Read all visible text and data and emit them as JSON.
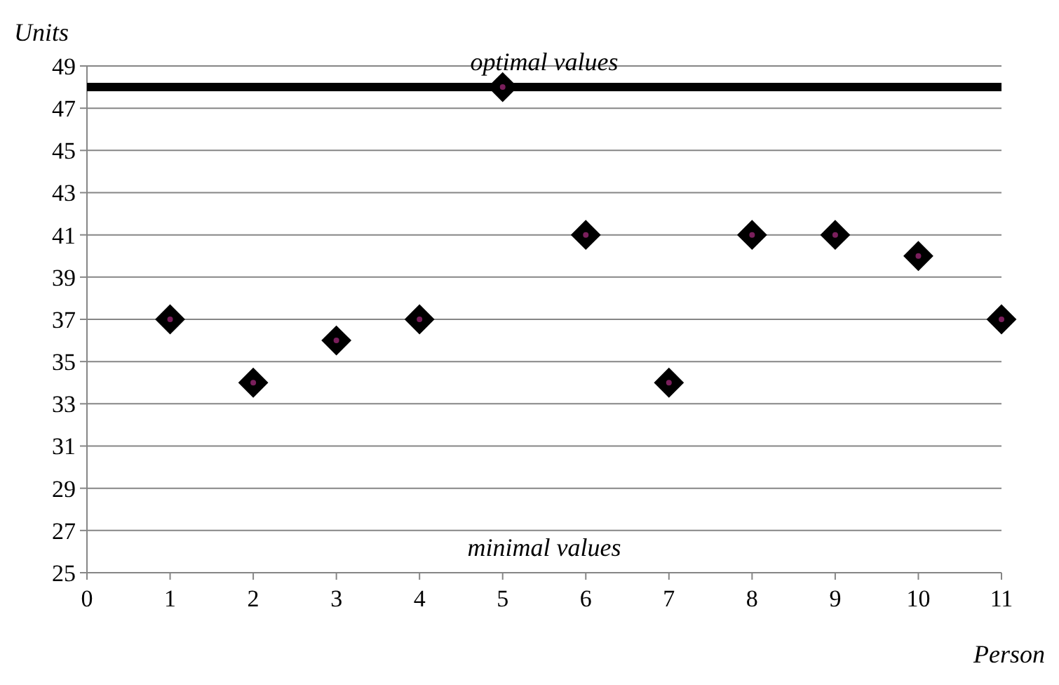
{
  "chart_data": {
    "type": "scatter",
    "xlabel": "Person",
    "ylabel": "Units",
    "x": [
      1,
      2,
      3,
      4,
      5,
      6,
      7,
      8,
      9,
      10,
      11
    ],
    "series": [
      {
        "color": "#000000",
        "values": [
          37,
          34,
          36,
          37,
          48,
          41,
          34,
          41,
          41,
          40,
          37
        ]
      }
    ],
    "xlim": [
      0,
      11
    ],
    "xticks": [
      0,
      1,
      2,
      3,
      4,
      5,
      6,
      7,
      8,
      9,
      10,
      11
    ],
    "ylim": [
      25,
      49
    ],
    "yticks": [
      25,
      27,
      29,
      31,
      33,
      35,
      37,
      39,
      41,
      43,
      45,
      47,
      49
    ],
    "grid": "y",
    "marker": "diamond",
    "ref_lines": [
      {
        "axis": "y",
        "value": 48,
        "label": "optimal values",
        "color": "#000000"
      }
    ],
    "annotations": [
      "minimal values"
    ]
  }
}
